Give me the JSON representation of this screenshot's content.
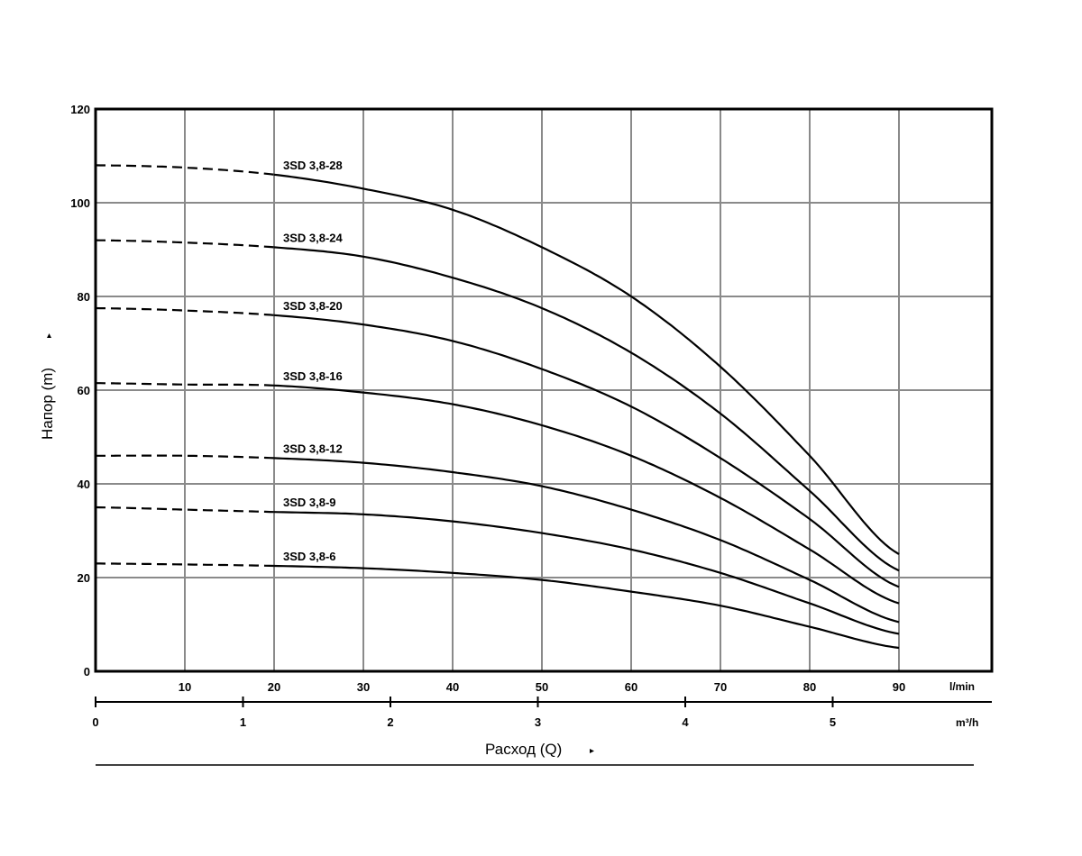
{
  "chart_data": {
    "type": "line",
    "ylabel": "Напор (m)",
    "xlabel": "Расход (Q)",
    "y_unit": "m",
    "x_unit_primary": "l/min",
    "x_unit_secondary": "m³/h",
    "ylim": [
      0,
      120
    ],
    "xlim": [
      0,
      100
    ],
    "y_ticks": [
      "0",
      "20",
      "40",
      "60",
      "80",
      "100",
      "120"
    ],
    "x_ticks": [
      "10",
      "20",
      "30",
      "40",
      "50",
      "60",
      "70",
      "80",
      "90"
    ],
    "x2_ticks": [
      "0",
      "1",
      "2",
      "3",
      "4",
      "5"
    ],
    "grid": true,
    "series": [
      {
        "name": "3SD 3,8-28",
        "dashed_until": 20,
        "x": [
          0,
          10,
          20,
          30,
          40,
          50,
          60,
          70,
          80,
          90
        ],
        "y": [
          108,
          107.5,
          106,
          103,
          98.5,
          90.5,
          80,
          65,
          46,
          25
        ]
      },
      {
        "name": "3SD 3,8-24",
        "dashed_until": 20,
        "x": [
          0,
          10,
          20,
          30,
          40,
          50,
          60,
          70,
          80,
          90
        ],
        "y": [
          92,
          91.5,
          90.5,
          88.5,
          84,
          77.5,
          68,
          55,
          38.5,
          21.5
        ]
      },
      {
        "name": "3SD 3,8-20",
        "dashed_until": 20,
        "x": [
          0,
          10,
          20,
          30,
          40,
          50,
          60,
          70,
          80,
          90
        ],
        "y": [
          77.5,
          77,
          76,
          74,
          70.5,
          64.5,
          56.5,
          45.5,
          32.5,
          18
        ]
      },
      {
        "name": "3SD 3,8-16",
        "dashed_until": 20,
        "x": [
          0,
          10,
          20,
          30,
          40,
          50,
          60,
          70,
          80,
          90
        ],
        "y": [
          61.5,
          61.2,
          61,
          59.5,
          57,
          52.5,
          46,
          37,
          26,
          14.5
        ]
      },
      {
        "name": "3SD 3,8-12",
        "dashed_until": 20,
        "x": [
          0,
          10,
          20,
          30,
          40,
          50,
          60,
          70,
          80,
          90
        ],
        "y": [
          46,
          46,
          45.5,
          44.5,
          42.5,
          39.5,
          34.5,
          28,
          19.5,
          10.5
        ]
      },
      {
        "name": "3SD 3,8-9",
        "dashed_until": 20,
        "x": [
          0,
          10,
          20,
          30,
          40,
          50,
          60,
          70,
          80,
          90
        ],
        "y": [
          35,
          34.5,
          34,
          33.5,
          32,
          29.5,
          26,
          21,
          14.5,
          8
        ]
      },
      {
        "name": "3SD 3,8-6",
        "dashed_until": 20,
        "x": [
          0,
          10,
          20,
          30,
          40,
          50,
          60,
          70,
          80,
          90
        ],
        "y": [
          23,
          22.8,
          22.5,
          22,
          21,
          19.5,
          17,
          14,
          9.5,
          5
        ]
      }
    ]
  }
}
